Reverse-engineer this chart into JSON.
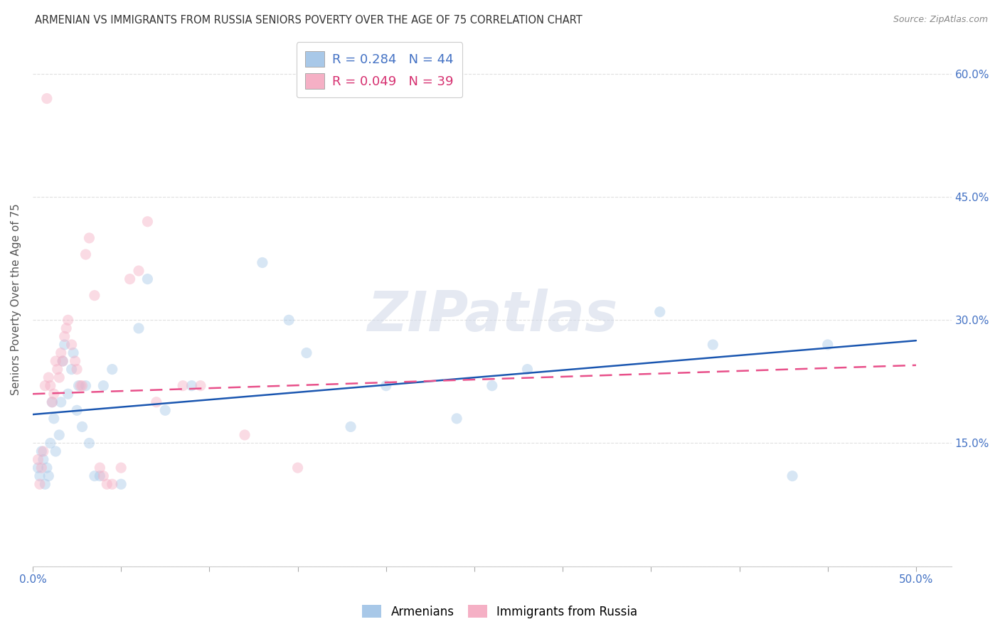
{
  "title": "ARMENIAN VS IMMIGRANTS FROM RUSSIA SENIORS POVERTY OVER THE AGE OF 75 CORRELATION CHART",
  "source_text": "Source: ZipAtlas.com",
  "ylabel": "Seniors Poverty Over the Age of 75",
  "xlim": [
    0.0,
    0.52
  ],
  "ylim": [
    0.0,
    0.65
  ],
  "ytick_positions": [
    0.0,
    0.15,
    0.3,
    0.45,
    0.6
  ],
  "ytick_labels": [
    "",
    "15.0%",
    "30.0%",
    "45.0%",
    "60.0%"
  ],
  "xtick_positions": [
    0.0,
    0.05,
    0.1,
    0.15,
    0.2,
    0.25,
    0.3,
    0.35,
    0.4,
    0.45,
    0.5
  ],
  "xtick_labels": [
    "0.0%",
    "",
    "",
    "",
    "",
    "",
    "",
    "",
    "",
    "",
    "50.0%"
  ],
  "armenian_color": "#a8c8e8",
  "russia_color": "#f5b0c5",
  "armenian_line_color": "#1a56b0",
  "russia_line_color": "#e8508a",
  "watermark_text": "ZIPatlas",
  "armenians_x": [
    0.003,
    0.004,
    0.005,
    0.006,
    0.007,
    0.008,
    0.009,
    0.01,
    0.011,
    0.012,
    0.013,
    0.015,
    0.016,
    0.017,
    0.018,
    0.02,
    0.022,
    0.023,
    0.025,
    0.026,
    0.028,
    0.03,
    0.032,
    0.035,
    0.038,
    0.04,
    0.045,
    0.05,
    0.06,
    0.065,
    0.075,
    0.09,
    0.13,
    0.145,
    0.155,
    0.18,
    0.2,
    0.24,
    0.26,
    0.28,
    0.355,
    0.385,
    0.43,
    0.45
  ],
  "armenians_y": [
    0.12,
    0.11,
    0.14,
    0.13,
    0.1,
    0.12,
    0.11,
    0.15,
    0.2,
    0.18,
    0.14,
    0.16,
    0.2,
    0.25,
    0.27,
    0.21,
    0.24,
    0.26,
    0.19,
    0.22,
    0.17,
    0.22,
    0.15,
    0.11,
    0.11,
    0.22,
    0.24,
    0.1,
    0.29,
    0.35,
    0.19,
    0.22,
    0.37,
    0.3,
    0.26,
    0.17,
    0.22,
    0.18,
    0.22,
    0.24,
    0.31,
    0.27,
    0.11,
    0.27
  ],
  "russia_x": [
    0.003,
    0.004,
    0.005,
    0.006,
    0.007,
    0.008,
    0.009,
    0.01,
    0.011,
    0.012,
    0.013,
    0.014,
    0.015,
    0.016,
    0.017,
    0.018,
    0.019,
    0.02,
    0.022,
    0.024,
    0.025,
    0.027,
    0.028,
    0.03,
    0.032,
    0.035,
    0.038,
    0.04,
    0.042,
    0.045,
    0.05,
    0.055,
    0.06,
    0.065,
    0.07,
    0.085,
    0.095,
    0.12,
    0.15
  ],
  "russia_y": [
    0.13,
    0.1,
    0.12,
    0.14,
    0.22,
    0.57,
    0.23,
    0.22,
    0.2,
    0.21,
    0.25,
    0.24,
    0.23,
    0.26,
    0.25,
    0.28,
    0.29,
    0.3,
    0.27,
    0.25,
    0.24,
    0.22,
    0.22,
    0.38,
    0.4,
    0.33,
    0.12,
    0.11,
    0.1,
    0.1,
    0.12,
    0.35,
    0.36,
    0.42,
    0.2,
    0.22,
    0.22,
    0.16,
    0.12
  ],
  "background_color": "#ffffff",
  "grid_color": "#e0e0e0",
  "title_color": "#333333",
  "marker_size": 120,
  "marker_alpha": 0.45,
  "line_width": 1.8
}
